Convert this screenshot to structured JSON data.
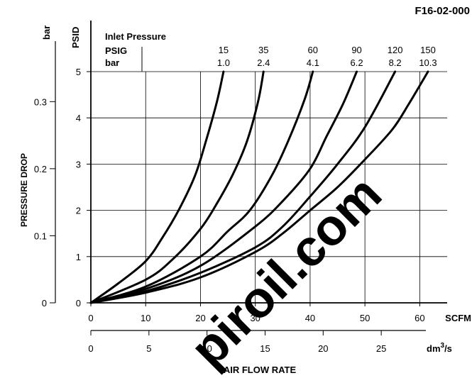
{
  "chart_data": {
    "type": "line",
    "figure_code": "F16-02-000",
    "title": "",
    "watermark": "piroil.com",
    "xlabel": "AIR FLOW RATE",
    "x_unit_primary": "SCFM",
    "x_unit_secondary": "dm³/s",
    "ylabel": "PRESSURE DROP",
    "y_unit_primary": "PSID",
    "y_unit_secondary": "bar",
    "xlim": [
      0,
      65
    ],
    "ylim": [
      0,
      5
    ],
    "x_ticks": [
      0,
      10,
      20,
      30,
      40,
      50,
      60
    ],
    "y_ticks": [
      0,
      1,
      2,
      3,
      4,
      5
    ],
    "x2_range_scale": 2.119,
    "x2_ticks": [
      0,
      5,
      10,
      15,
      20,
      25
    ],
    "y2_ticks": [
      0,
      0.1,
      0.2,
      0.3
    ],
    "y2_scale_psi_per_bar": 14.5038,
    "grid": true,
    "line_color": "#000000",
    "legend": {
      "header": "Inlet Pressure",
      "psig_label": "PSIG",
      "bar_label": "bar"
    },
    "series": [
      {
        "psig": "15",
        "bar": "1.0",
        "x": [
          0,
          5,
          10,
          13,
          16,
          19,
          21,
          23,
          24.2
        ],
        "y": [
          0,
          0.42,
          0.9,
          1.4,
          2.0,
          2.75,
          3.5,
          4.35,
          5.0
        ]
      },
      {
        "psig": "35",
        "bar": "2.4",
        "x": [
          0,
          10,
          15,
          20,
          23,
          26,
          28.5,
          30.5,
          31.5
        ],
        "y": [
          0,
          0.5,
          0.95,
          1.6,
          2.15,
          2.8,
          3.5,
          4.35,
          5.0
        ]
      },
      {
        "psig": "60",
        "bar": "4.1",
        "x": [
          0,
          10,
          20,
          25,
          29,
          33,
          36,
          39,
          40.5
        ],
        "y": [
          0,
          0.35,
          1.0,
          1.55,
          2.0,
          2.75,
          3.5,
          4.4,
          5.0
        ]
      },
      {
        "psig": "90",
        "bar": "6.2",
        "x": [
          0,
          10,
          20,
          30,
          35,
          40,
          43,
          46,
          48.5
        ],
        "y": [
          0,
          0.3,
          0.8,
          1.65,
          2.2,
          2.9,
          3.6,
          4.3,
          5.0
        ]
      },
      {
        "psig": "120",
        "bar": "8.2",
        "x": [
          0,
          10,
          20,
          30,
          35,
          40,
          45,
          50,
          55.5
        ],
        "y": [
          0,
          0.25,
          0.65,
          1.2,
          1.65,
          2.3,
          3.0,
          3.8,
          5.0
        ]
      },
      {
        "psig": "150",
        "bar": "10.3",
        "x": [
          0,
          10,
          20,
          30,
          35,
          40,
          45,
          50,
          55,
          58,
          61.5
        ],
        "y": [
          0,
          0.22,
          0.55,
          1.1,
          1.5,
          2.0,
          2.5,
          3.1,
          3.75,
          4.3,
          5.0
        ]
      }
    ]
  }
}
